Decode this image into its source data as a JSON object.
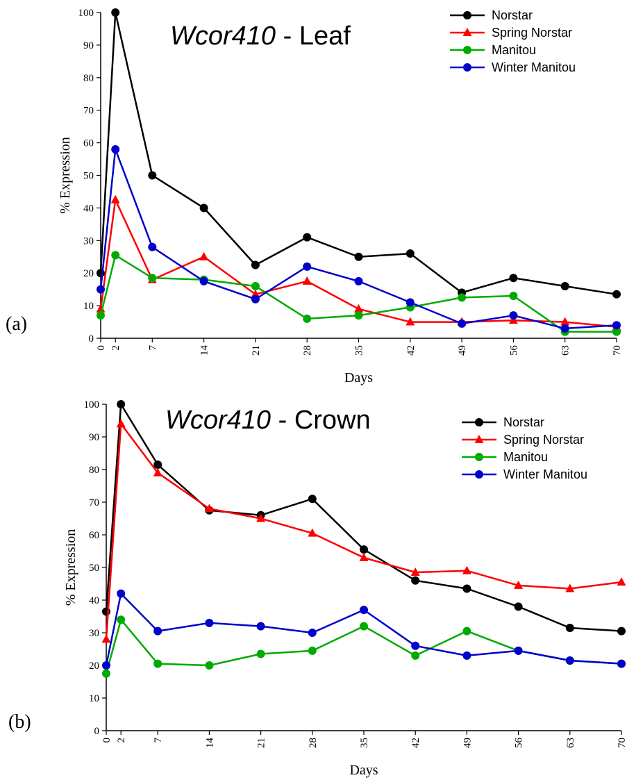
{
  "chart_data": [
    {
      "type": "line",
      "panel_label": "(a)",
      "title_gene": "Wcor410",
      "title_tissue": " - Leaf",
      "xlabel": "Days",
      "ylabel": "% Expression",
      "x": [
        0,
        2,
        7,
        14,
        21,
        28,
        35,
        42,
        49,
        56,
        63,
        70
      ],
      "xlim": [
        0,
        70
      ],
      "ylim": [
        0,
        100
      ],
      "yticks": [
        0,
        10,
        20,
        30,
        40,
        50,
        60,
        70,
        80,
        90,
        100
      ],
      "grid": false,
      "legend_position": "top-right",
      "series": [
        {
          "name": "Norstar",
          "color": "#000000",
          "marker": "circle",
          "values": [
            20,
            100,
            50,
            40,
            22.5,
            31,
            25,
            26,
            14,
            18.5,
            16,
            13.5
          ]
        },
        {
          "name": "Spring Norstar",
          "color": "#ff0000",
          "marker": "triangle",
          "values": [
            9,
            42.5,
            18,
            25,
            13.5,
            17.5,
            9,
            5,
            5,
            5.5,
            5,
            3.5
          ]
        },
        {
          "name": "Manitou",
          "color": "#00aa00",
          "marker": "circle",
          "values": [
            7,
            25.5,
            18.5,
            18,
            16,
            6,
            7,
            9.5,
            12.5,
            13,
            2,
            2
          ]
        },
        {
          "name": "Winter Manitou",
          "color": "#0000cc",
          "marker": "circle",
          "values": [
            15,
            58,
            28,
            17.5,
            12,
            22,
            17.5,
            11,
            4.5,
            7,
            3,
            4
          ]
        }
      ]
    },
    {
      "type": "line",
      "panel_label": "(b)",
      "title_gene": "Wcor410",
      "title_tissue": " - Crown",
      "xlabel": "Days",
      "ylabel": "% Expression",
      "x": [
        0,
        2,
        7,
        14,
        21,
        28,
        35,
        42,
        49,
        56,
        63,
        70
      ],
      "xlim": [
        0,
        70
      ],
      "ylim": [
        0,
        100
      ],
      "yticks": [
        0,
        10,
        20,
        30,
        40,
        50,
        60,
        70,
        80,
        90,
        100
      ],
      "grid": false,
      "legend_position": "top-right",
      "series": [
        {
          "name": "Norstar",
          "color": "#000000",
          "marker": "circle",
          "values": [
            36.5,
            100,
            81.5,
            67.5,
            66,
            71,
            55.5,
            46,
            43.5,
            38,
            31.5,
            30.5
          ]
        },
        {
          "name": "Spring Norstar",
          "color": "#ff0000",
          "marker": "triangle",
          "values": [
            28,
            94,
            79,
            68,
            65,
            60.5,
            53,
            48.5,
            49,
            44.5,
            43.5,
            45.5
          ]
        },
        {
          "name": "Manitou",
          "color": "#00aa00",
          "marker": "circle",
          "values": [
            17.5,
            34,
            20.5,
            20,
            23.5,
            24.5,
            32,
            23,
            30.5,
            24.5,
            21.5,
            20.5
          ]
        },
        {
          "name": "Winter Manitou",
          "color": "#0000cc",
          "marker": "circle",
          "values": [
            20,
            42,
            30.5,
            33,
            32,
            30,
            37,
            26,
            23,
            24.5,
            21.5,
            20.5
          ]
        }
      ]
    }
  ]
}
